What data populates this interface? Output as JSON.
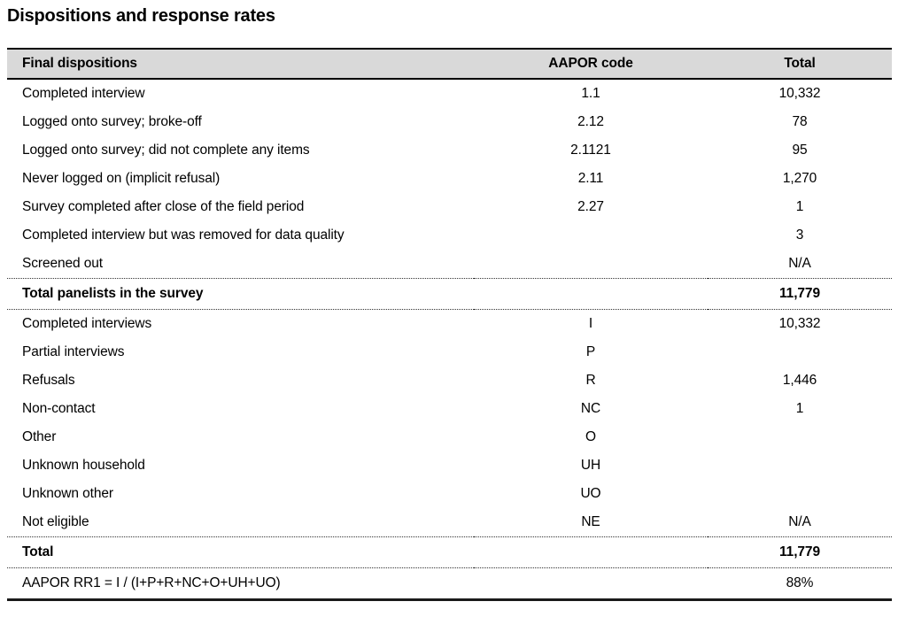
{
  "page_title": "Dispositions and response rates",
  "colors": {
    "header_background": "#d9d9d9",
    "border": "#000000",
    "text": "#000000"
  },
  "table": {
    "columns": {
      "label": "Final dispositions",
      "code": "AAPOR code",
      "total": "Total"
    },
    "rows": [
      {
        "label": "Completed interview",
        "code": "1.1",
        "total": "10,332"
      },
      {
        "label": "Logged onto survey; broke-off",
        "code": "2.12",
        "total": "78"
      },
      {
        "label": "Logged onto survey; did not complete any items",
        "code": "2.1121",
        "total": "95"
      },
      {
        "label": "Never logged on (implicit refusal)",
        "code": "2.11",
        "total": "1,270"
      },
      {
        "label": "Survey completed after close of the field period",
        "code": "2.27",
        "total": "1"
      },
      {
        "label": "Completed interview but was removed for data quality",
        "code": "",
        "total": "3"
      },
      {
        "label": "Screened out",
        "code": "",
        "total": "N/A"
      },
      {
        "label": "Total panelists in the survey",
        "code": "",
        "total": "11,779"
      },
      {
        "label": "Completed interviews",
        "code": "I",
        "total": "10,332"
      },
      {
        "label": "Partial interviews",
        "code": "P",
        "total": ""
      },
      {
        "label": "Refusals",
        "code": "R",
        "total": "1,446"
      },
      {
        "label": "Non-contact",
        "code": "NC",
        "total": "1"
      },
      {
        "label": "Other",
        "code": "O",
        "total": ""
      },
      {
        "label": "Unknown household",
        "code": "UH",
        "total": ""
      },
      {
        "label": "Unknown other",
        "code": "UO",
        "total": ""
      },
      {
        "label": "Not eligible",
        "code": "NE",
        "total": "N/A"
      },
      {
        "label": "Total",
        "code": "",
        "total": "11,779"
      },
      {
        "label": "AAPOR RR1 = I / (I+P+R+NC+O+UH+UO)",
        "code": "",
        "total": "88%"
      }
    ]
  }
}
